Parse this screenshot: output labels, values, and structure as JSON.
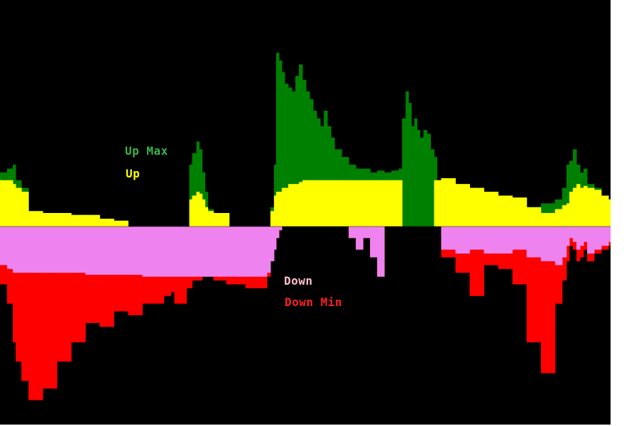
{
  "chart_data": {
    "type": "area",
    "title": "",
    "xlabel": "",
    "ylabel": "",
    "baseline": 0,
    "ylim": [
      -5.5,
      5.5
    ],
    "grid": false,
    "legend": "inline",
    "background": "#000000",
    "series": [
      {
        "key": "up_max",
        "name": "Up Max",
        "color": "#008000",
        "label_color": "#3cb34a",
        "x": [
          0,
          10,
          18,
          22,
          30,
          40,
          60,
          80,
          100,
          120,
          140,
          160,
          180,
          200,
          230,
          240,
          245,
          262,
          266,
          270,
          276,
          280,
          284,
          288,
          292,
          300,
          310,
          318,
          322,
          345,
          350,
          375,
          380,
          385,
          388,
          392,
          396,
          400,
          405,
          410,
          415,
          420,
          425,
          430,
          435,
          440,
          445,
          450,
          455,
          460,
          465,
          470,
          480,
          490,
          500,
          510,
          520,
          530,
          540,
          550,
          560,
          565,
          570,
          574,
          578,
          582,
          586,
          590,
          595,
          600,
          605,
          610,
          614,
          620,
          640,
          660,
          680,
          700,
          720,
          740,
          760,
          780,
          790,
          796,
          800,
          805,
          810,
          815,
          820,
          825,
          835,
          845,
          855,
          858
        ],
        "y": [
          1.4,
          1.5,
          1.6,
          1.2,
          1.0,
          0.4,
          0.35,
          0.35,
          0.3,
          0.3,
          0.2,
          0.15,
          0.0,
          0.0,
          0.0,
          0.0,
          0.0,
          0.0,
          1.6,
          1.9,
          2.2,
          2.0,
          1.4,
          0.9,
          0.45,
          0.35,
          0.35,
          0.35,
          0.0,
          0.0,
          0.0,
          0.0,
          0.5,
          1.6,
          4.5,
          4.3,
          4.0,
          3.7,
          3.6,
          3.5,
          3.9,
          4.2,
          3.8,
          3.5,
          3.3,
          3.0,
          2.8,
          2.6,
          3.0,
          2.6,
          2.3,
          2.0,
          1.8,
          1.6,
          1.5,
          1.5,
          1.4,
          1.45,
          1.4,
          1.45,
          1.5,
          2.8,
          3.5,
          3.2,
          2.6,
          2.8,
          2.5,
          2.3,
          2.5,
          2.4,
          2.0,
          1.8,
          1.2,
          1.25,
          1.1,
          1.0,
          0.9,
          0.8,
          0.75,
          0.5,
          0.6,
          0.7,
          1.0,
          1.6,
          1.7,
          2.0,
          1.6,
          1.4,
          1.5,
          1.1,
          1.0,
          0.8,
          0.7,
          0.95
        ]
      },
      {
        "key": "up",
        "name": "Up",
        "color": "#ffff00",
        "label_color": "#ffff00",
        "x": [
          0,
          10,
          18,
          22,
          30,
          40,
          60,
          80,
          100,
          120,
          140,
          160,
          180,
          200,
          230,
          240,
          245,
          262,
          266,
          270,
          276,
          280,
          284,
          288,
          292,
          300,
          310,
          318,
          322,
          345,
          350,
          375,
          380,
          385,
          388,
          392,
          396,
          400,
          405,
          410,
          415,
          420,
          425,
          430,
          435,
          440,
          445,
          450,
          455,
          460,
          465,
          470,
          480,
          490,
          500,
          510,
          520,
          530,
          540,
          550,
          560,
          565,
          570,
          574,
          578,
          582,
          586,
          590,
          595,
          600,
          605,
          610,
          614,
          620,
          640,
          660,
          680,
          700,
          720,
          740,
          760,
          780,
          790,
          796,
          800,
          805,
          810,
          815,
          820,
          825,
          835,
          845,
          855,
          858
        ],
        "y": [
          1.2,
          1.2,
          1.1,
          1.0,
          0.9,
          0.4,
          0.35,
          0.35,
          0.3,
          0.3,
          0.2,
          0.15,
          0.0,
          0.0,
          0.0,
          0.0,
          0.0,
          0.0,
          0.7,
          0.8,
          0.9,
          0.85,
          0.7,
          0.5,
          0.4,
          0.35,
          0.35,
          0.35,
          0.0,
          0.0,
          0.0,
          0.0,
          0.4,
          0.8,
          0.9,
          0.9,
          1.0,
          1.0,
          1.1,
          1.1,
          1.1,
          1.15,
          1.2,
          1.2,
          1.2,
          1.2,
          1.2,
          1.2,
          1.2,
          1.2,
          1.2,
          1.2,
          1.2,
          1.2,
          1.2,
          1.2,
          1.2,
          1.2,
          1.2,
          1.2,
          1.2,
          0.0,
          0.0,
          0.0,
          0.0,
          0.0,
          0.0,
          0.0,
          0.0,
          0.0,
          0.0,
          1.2,
          1.2,
          1.25,
          1.1,
          1.0,
          0.9,
          0.8,
          0.75,
          0.5,
          0.35,
          0.45,
          0.55,
          0.6,
          0.9,
          1.0,
          1.1,
          1.0,
          1.05,
          1.0,
          0.95,
          0.8,
          0.7,
          0.9
        ]
      },
      {
        "key": "down",
        "name": "Down",
        "color": "#ee82ee",
        "label_color": "#ffc0cb",
        "x": [
          0,
          10,
          18,
          22,
          30,
          40,
          60,
          80,
          100,
          120,
          140,
          160,
          180,
          200,
          230,
          240,
          245,
          262,
          266,
          270,
          276,
          280,
          284,
          288,
          292,
          300,
          310,
          318,
          322,
          345,
          350,
          375,
          380,
          385,
          388,
          392,
          396,
          400,
          405,
          410,
          415,
          420,
          425,
          430,
          435,
          440,
          445,
          450,
          455,
          460,
          465,
          470,
          480,
          490,
          500,
          510,
          520,
          530,
          540,
          550,
          560,
          565,
          570,
          574,
          578,
          582,
          586,
          590,
          595,
          600,
          605,
          610,
          614,
          620,
          640,
          660,
          680,
          700,
          720,
          740,
          760,
          780,
          790,
          796,
          800,
          805,
          810,
          815,
          820,
          825,
          835,
          845,
          855,
          858
        ],
        "y": [
          -1.0,
          -1.1,
          -1.2,
          -1.2,
          -1.2,
          -1.2,
          -1.2,
          -1.2,
          -1.2,
          -1.25,
          -1.25,
          -1.25,
          -1.25,
          -1.3,
          -1.3,
          -1.3,
          -1.3,
          -1.3,
          -1.3,
          -1.3,
          -1.3,
          -1.3,
          -1.3,
          -1.3,
          -1.3,
          -1.3,
          -1.3,
          -1.3,
          -1.3,
          -1.3,
          -1.3,
          -1.2,
          -0.9,
          -0.6,
          -0.3,
          -0.1,
          0.0,
          0.0,
          0.0,
          0.0,
          0.0,
          0.0,
          0.0,
          0.0,
          0.0,
          0.0,
          0.0,
          0.0,
          0.0,
          0.0,
          0.0,
          0.0,
          0.0,
          -0.3,
          -0.6,
          -0.3,
          -0.8,
          -1.3,
          0.0,
          0.0,
          0.0,
          0.0,
          0.0,
          0.0,
          0.0,
          0.0,
          0.0,
          0.0,
          0.0,
          0.0,
          0.0,
          0.0,
          0.0,
          -0.6,
          -0.7,
          -0.6,
          -0.7,
          -0.7,
          -0.6,
          -0.8,
          -0.9,
          -1.0,
          -0.8,
          -0.5,
          -0.3,
          -0.4,
          -0.6,
          -0.5,
          -0.4,
          -0.7,
          -0.6,
          -0.5,
          -0.4,
          -0.3
        ]
      },
      {
        "key": "down_min",
        "name": "Down Min",
        "color": "#ff0000",
        "label_color": "#ff2020",
        "x": [
          0,
          10,
          18,
          22,
          30,
          40,
          60,
          80,
          100,
          120,
          140,
          160,
          180,
          200,
          230,
          240,
          245,
          262,
          266,
          270,
          276,
          280,
          284,
          288,
          292,
          300,
          310,
          318,
          322,
          345,
          350,
          375,
          380,
          385,
          388,
          392,
          396,
          400,
          405,
          410,
          415,
          420,
          425,
          430,
          435,
          440,
          445,
          450,
          455,
          460,
          465,
          470,
          480,
          490,
          500,
          510,
          520,
          530,
          540,
          550,
          560,
          565,
          570,
          574,
          578,
          582,
          586,
          590,
          595,
          600,
          605,
          610,
          614,
          620,
          640,
          660,
          680,
          700,
          720,
          740,
          760,
          780,
          790,
          796,
          800,
          805,
          810,
          815,
          820,
          825,
          835,
          845,
          855,
          858
        ],
        "y": [
          -1.5,
          -2.0,
          -3.0,
          -3.5,
          -4.0,
          -4.5,
          -4.2,
          -3.5,
          -3.0,
          -2.5,
          -2.6,
          -2.2,
          -2.3,
          -2.0,
          -1.8,
          -1.7,
          -2.0,
          -1.6,
          -1.6,
          -1.4,
          -1.4,
          -1.4,
          -1.3,
          -1.3,
          -1.3,
          -1.4,
          -1.4,
          -1.5,
          -1.5,
          -1.6,
          -1.6,
          -1.3,
          -0.9,
          -0.6,
          -0.3,
          -0.1,
          0.0,
          0.0,
          0.0,
          0.0,
          0.0,
          0.0,
          0.0,
          0.0,
          0.0,
          0.0,
          0.0,
          0.0,
          0.0,
          0.0,
          0.0,
          0.0,
          0.0,
          -0.3,
          -0.6,
          -0.3,
          -0.8,
          -1.3,
          0.0,
          0.0,
          0.0,
          0.0,
          0.0,
          0.0,
          0.0,
          0.0,
          0.0,
          0.0,
          0.0,
          0.0,
          0.0,
          0.0,
          0.0,
          -0.8,
          -1.2,
          -1.8,
          -1.0,
          -1.1,
          -1.5,
          -3.0,
          -3.8,
          -2.0,
          -1.4,
          -0.9,
          -0.5,
          -0.6,
          -0.9,
          -0.8,
          -0.6,
          -0.9,
          -0.7,
          -0.6,
          -0.5,
          -0.4
        ]
      }
    ]
  }
}
